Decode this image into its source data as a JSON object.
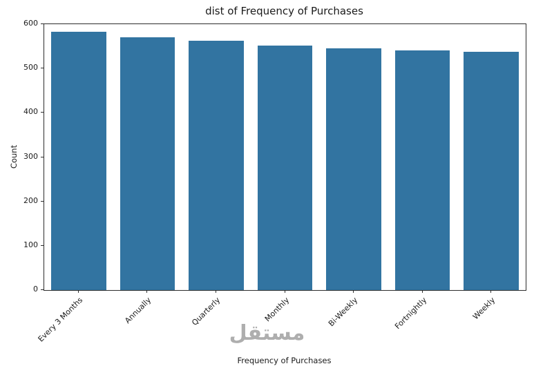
{
  "chart_data": {
    "type": "bar",
    "title": "dist of Frequency of Purchases",
    "xlabel": "Frequency of Purchases",
    "ylabel": "Count",
    "categories": [
      "Every 3 Months",
      "Annually",
      "Quarterly",
      "Monthly",
      "Bi-Weekly",
      "Fortnightly",
      "Weekly"
    ],
    "values": [
      583,
      570,
      562,
      551,
      546,
      541,
      538
    ],
    "ylim": [
      0,
      600
    ],
    "yticks": [
      0,
      100,
      200,
      300,
      400,
      500,
      600
    ],
    "bar_color": "#3274A1",
    "grid": false,
    "legend_position": "none",
    "x_tick_rotation": 45
  },
  "watermark": {
    "text": "مستقل",
    "color": "#9b9b9b"
  }
}
